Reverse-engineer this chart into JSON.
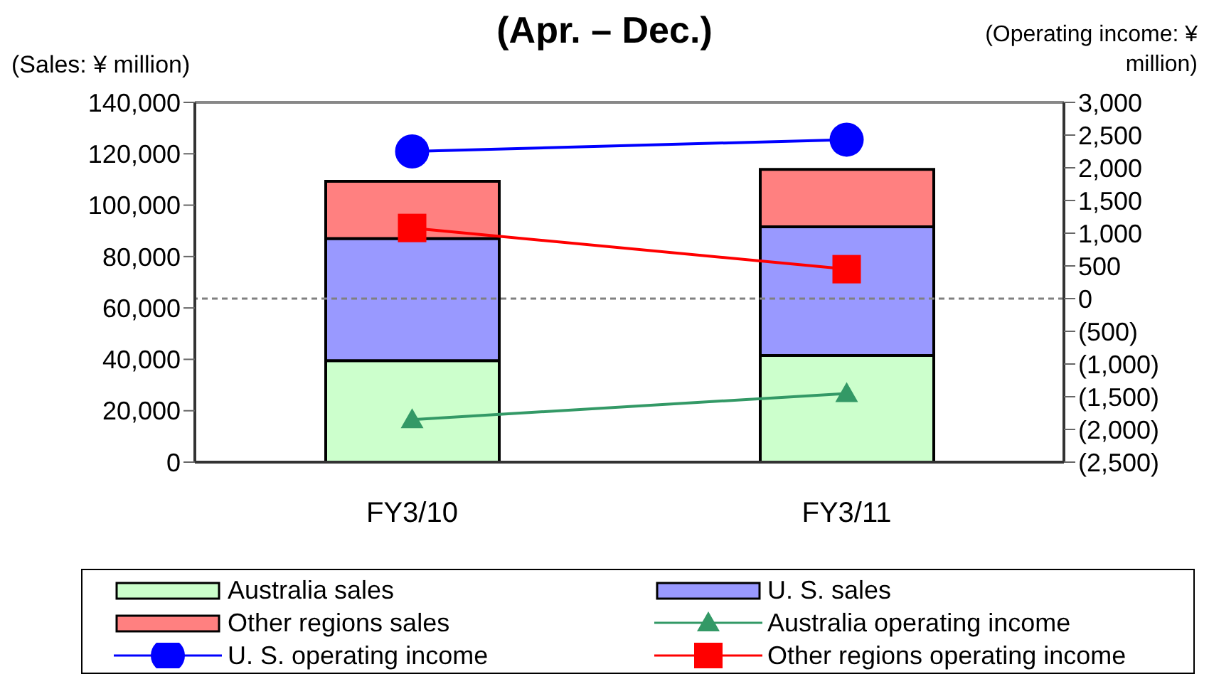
{
  "chart_data": {
    "type": "bar",
    "title": "(Apr. – Dec.)",
    "ylabel": "(Sales: ¥ million)",
    "y2label": "(Operating income: ¥ million)",
    "categories": [
      "FY3/10",
      "FY3/11"
    ],
    "stacked": true,
    "legend": "bottom",
    "ylim": [
      0,
      140000
    ],
    "yticks": [
      {
        "value": 0,
        "label": "0"
      },
      {
        "value": 20000,
        "label": "20,000"
      },
      {
        "value": 40000,
        "label": "40,000"
      },
      {
        "value": 60000,
        "label": "60,000"
      },
      {
        "value": 80000,
        "label": "80,000"
      },
      {
        "value": 100000,
        "label": "100,000"
      },
      {
        "value": 120000,
        "label": "120,000"
      },
      {
        "value": 140000,
        "label": "140,000"
      }
    ],
    "y2lim": [
      -2500,
      3000
    ],
    "y2ticks": [
      {
        "value": -2500,
        "label": "(2,500)"
      },
      {
        "value": -2000,
        "label": "(2,000)"
      },
      {
        "value": -1500,
        "label": "(1,500)"
      },
      {
        "value": -1000,
        "label": "(1,000)"
      },
      {
        "value": -500,
        "label": "(500)"
      },
      {
        "value": 0,
        "label": "0"
      },
      {
        "value": 500,
        "label": "500"
      },
      {
        "value": 1000,
        "label": "1,000"
      },
      {
        "value": 1500,
        "label": "1,500"
      },
      {
        "value": 2000,
        "label": "2,000"
      },
      {
        "value": 2500,
        "label": "2,500"
      },
      {
        "value": 3000,
        "label": "3,000"
      }
    ],
    "ref_lines": [
      {
        "axis": "y2",
        "value": 0,
        "color": "#808080",
        "line_style": "dashed"
      }
    ],
    "series": [
      {
        "name": "Australia sales",
        "color": "#ccffcc",
        "values": [
          39500,
          41500
        ]
      },
      {
        "name": "U. S. sales",
        "color": "#9999ff",
        "values": [
          47500,
          50100
        ]
      },
      {
        "name": "Other regions sales",
        "color": "#ff8080",
        "values": [
          22300,
          22300
        ]
      },
      {
        "name": "Australia operating income",
        "type": "line",
        "axis": "y2",
        "marker": "triangle",
        "color": "#339966",
        "values": [
          -1850,
          -1450
        ]
      },
      {
        "name": "U. S. operating income",
        "type": "line",
        "axis": "y2",
        "marker": "circle",
        "color": "#0000ff",
        "values": [
          2250,
          2430
        ]
      },
      {
        "name": "Other regions operating income",
        "type": "line",
        "axis": "y2",
        "marker": "square",
        "color": "#ff0000",
        "values": [
          1080,
          450
        ]
      }
    ]
  }
}
